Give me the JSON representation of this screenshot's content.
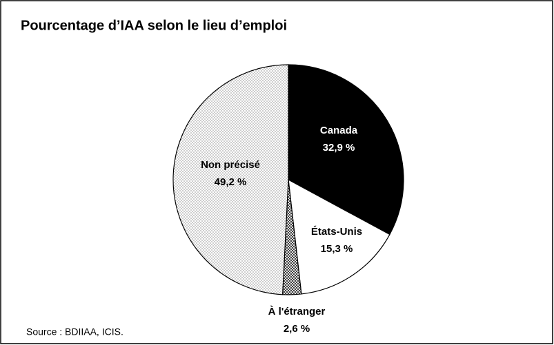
{
  "chart_data": {
    "type": "pie",
    "title": "Pourcentage d’IAA selon le lieu d’emploi",
    "categories": [
      "Canada",
      "États-Unis",
      "À l'étranger",
      "Non précisé"
    ],
    "values": [
      32.9,
      15.3,
      2.6,
      49.2
    ],
    "value_labels": [
      "32,9 %",
      "15,3 %",
      "2,6 %",
      "49,2 %"
    ],
    "colors": [
      "#000000",
      "#ffffff",
      "#ffffff",
      "#ffffff"
    ],
    "patterns": [
      "solid",
      "solid",
      "crosshatch",
      "dots"
    ],
    "source": "Source : BDIIAA, ICIS."
  }
}
